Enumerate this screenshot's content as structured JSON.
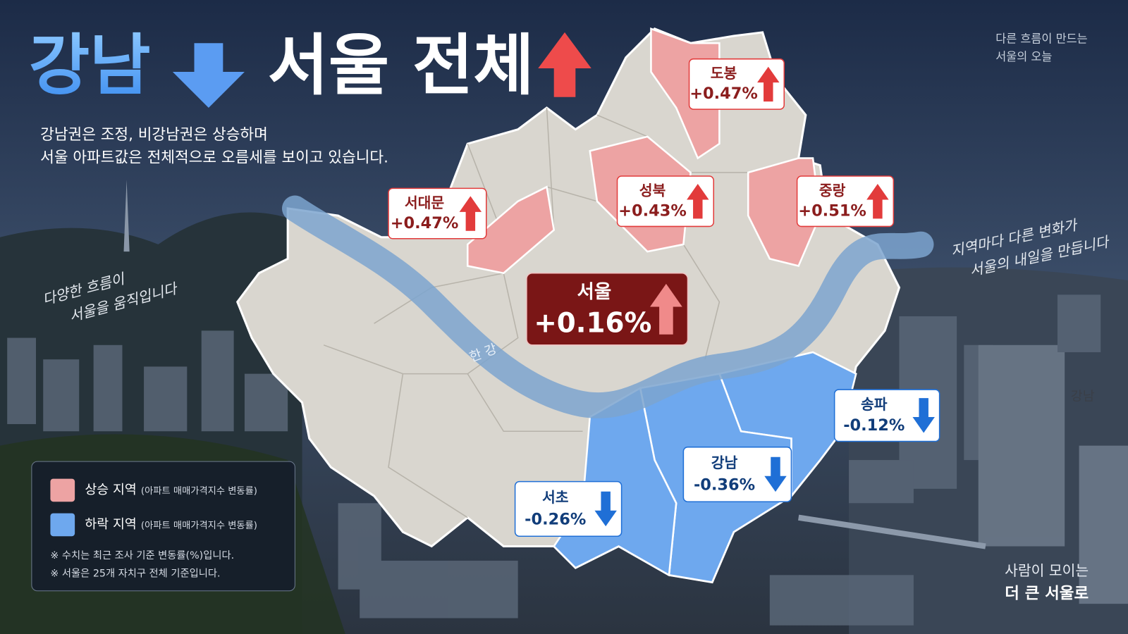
{
  "title": {
    "part1": "강남",
    "part2": "서울 전체"
  },
  "subtitle": [
    "강남권은 조정, 비강남권은 상승하며",
    "서울 아파트값은 전체적으로 오름세를 보이고 있습니다."
  ],
  "top_right_note": [
    "다른 흐름이 만드는",
    "서울의 오늘"
  ],
  "handwriting_right": [
    "지역마다 다른 변화가",
    "서울의 내일을 만듭니다"
  ],
  "handwriting_left": [
    "다양한 흐름이",
    "서울을 움직입니다"
  ],
  "river_label": "한 강",
  "seoul": {
    "name": "서울",
    "change": "+0.16%",
    "direction": "up"
  },
  "regions": [
    {
      "name": "도봉",
      "change": "+0.47%",
      "direction": "up"
    },
    {
      "name": "서대문",
      "change": "+0.47%",
      "direction": "up"
    },
    {
      "name": "성북",
      "change": "+0.43%",
      "direction": "up"
    },
    {
      "name": "중랑",
      "change": "+0.51%",
      "direction": "up"
    },
    {
      "name": "송파",
      "change": "-0.12%",
      "direction": "down"
    },
    {
      "name": "강남",
      "change": "-0.36%",
      "direction": "down"
    },
    {
      "name": "서초",
      "change": "-0.26%",
      "direction": "down"
    }
  ],
  "legend": {
    "items": [
      {
        "label": "상승 지역",
        "note": "(아파트 매매가격지수 변동률)",
        "direction": "up"
      },
      {
        "label": "하락 지역",
        "note": "(아파트 매매가격지수 변동률)",
        "direction": "down"
      }
    ],
    "notes": [
      "※ 수치는 최근 조사 기준 변동률(%)입니다.",
      "※ 서울은 25개 자치구 전체 기준입니다."
    ]
  },
  "building_label": "강남",
  "footer": [
    "사람이 모이는",
    "더 큰 서울로"
  ]
}
